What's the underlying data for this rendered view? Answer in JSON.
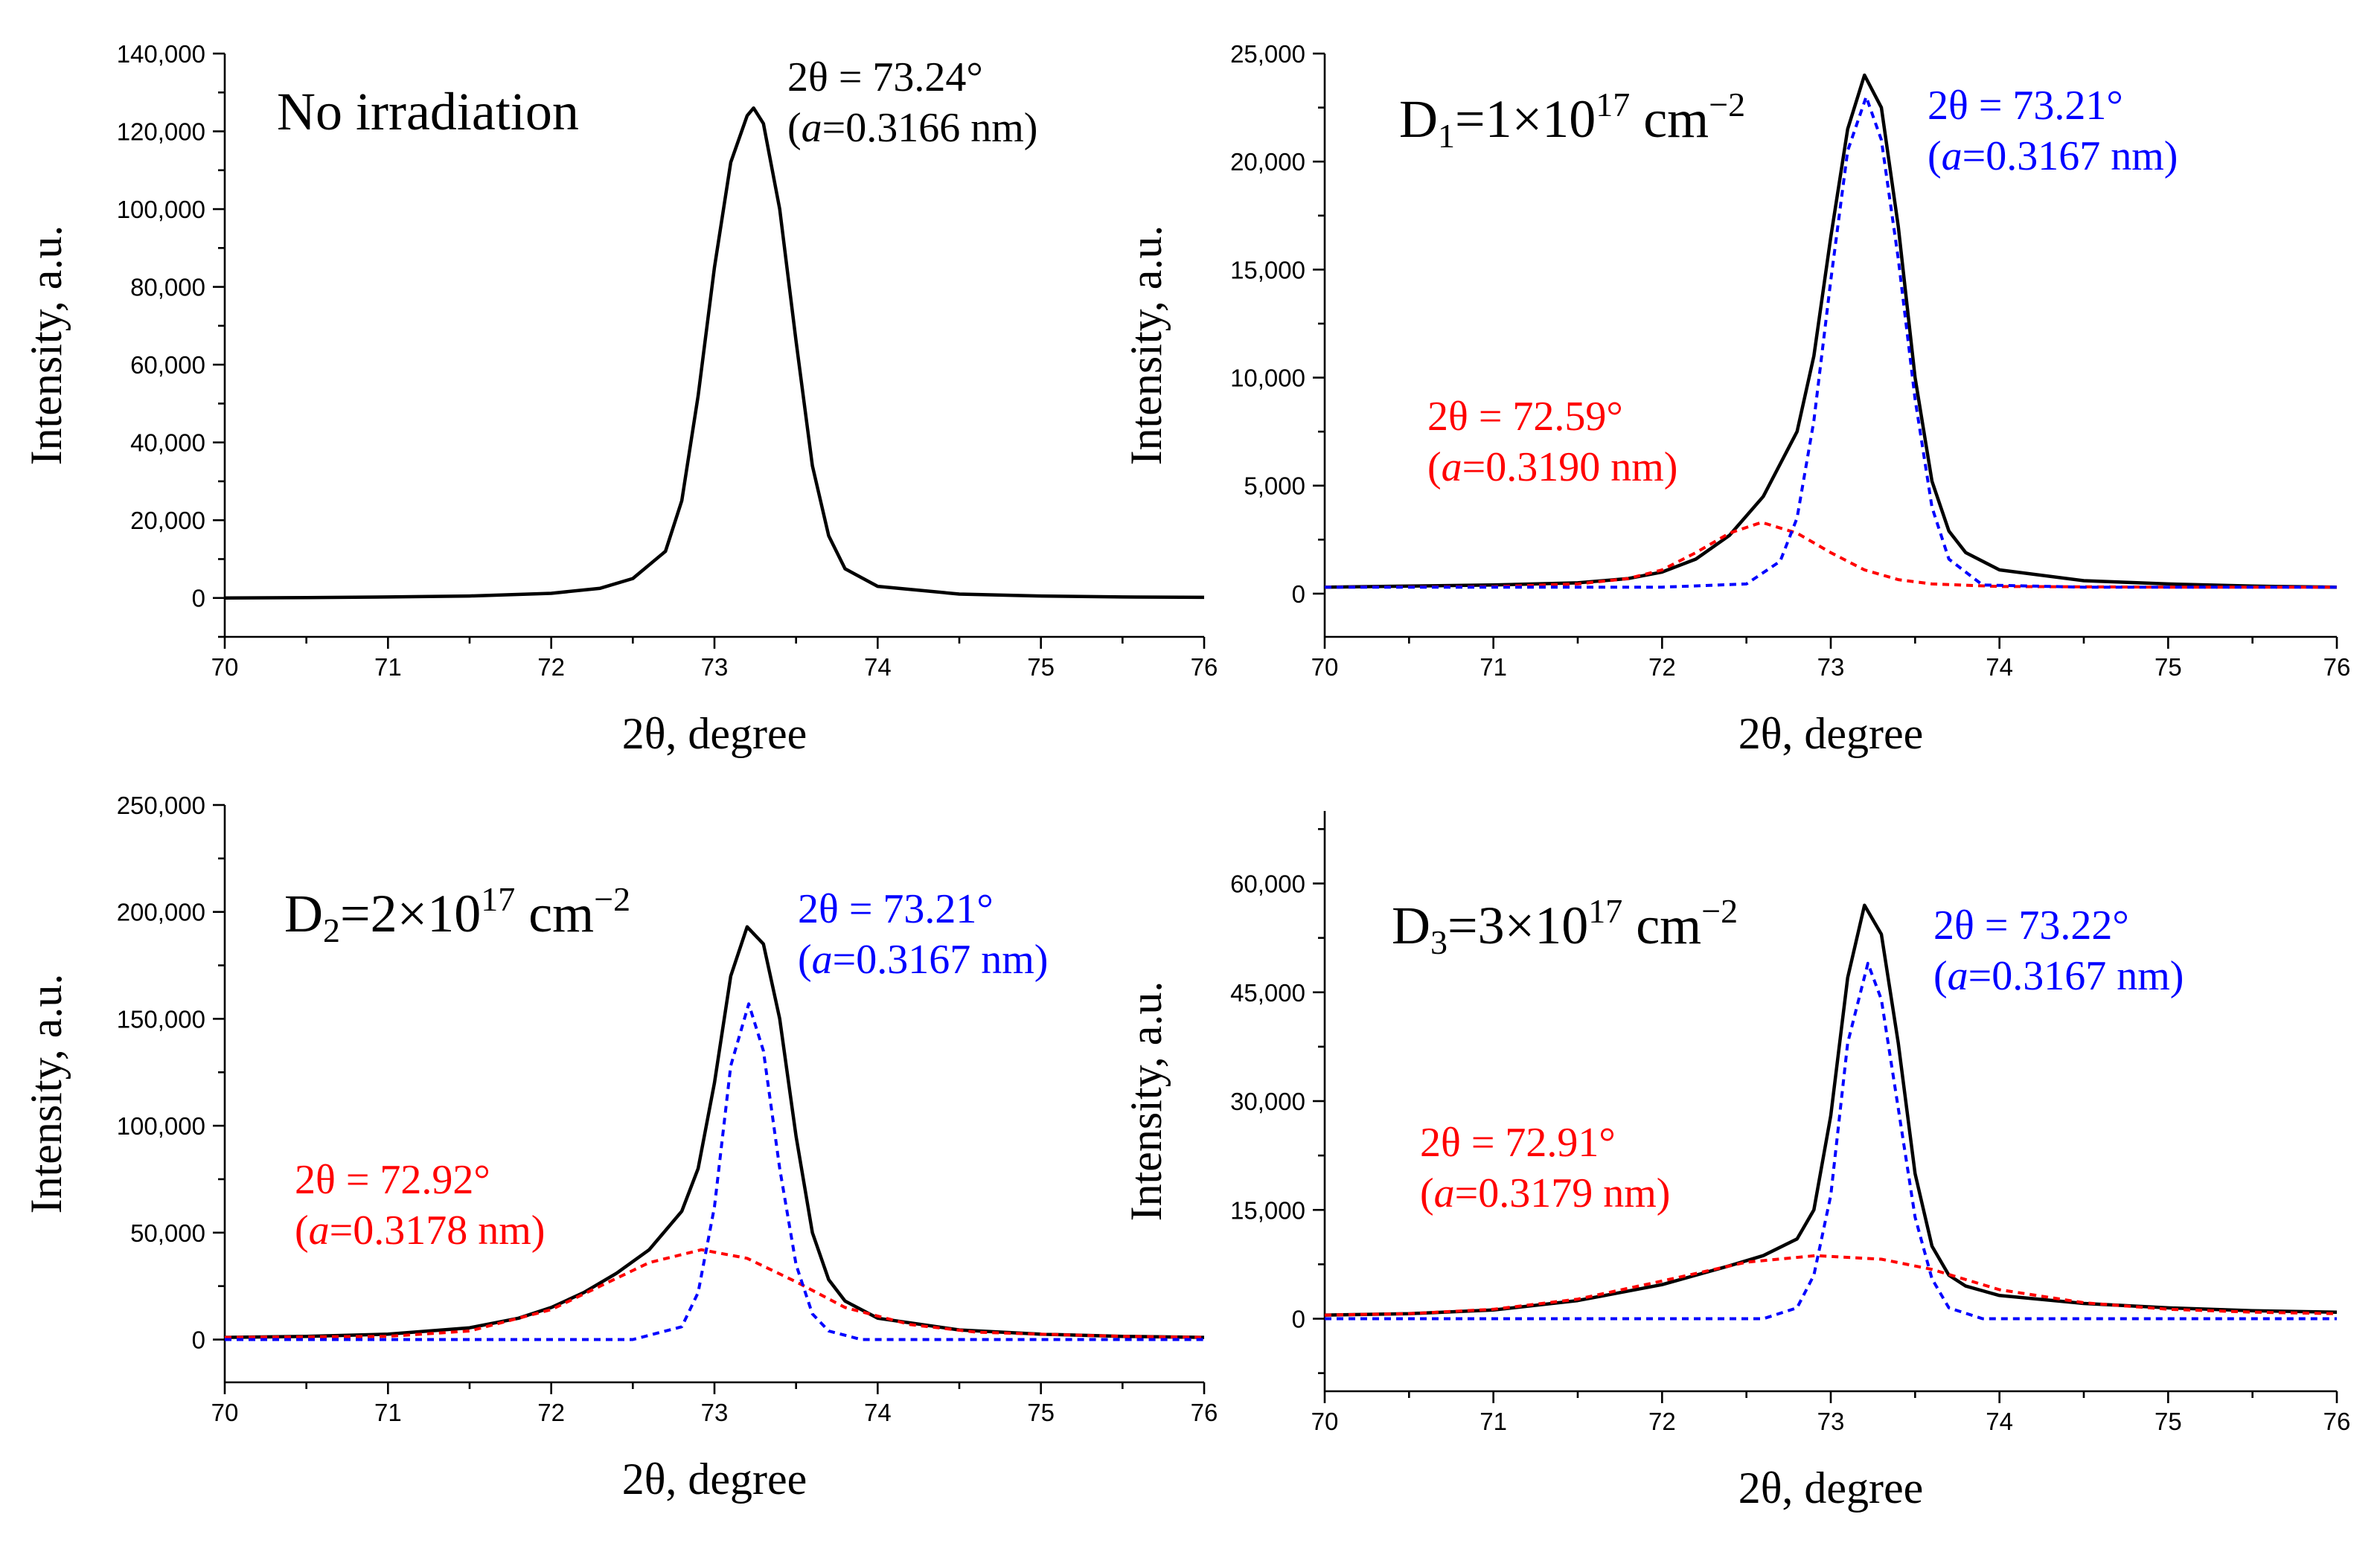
{
  "chart_data": [
    {
      "type": "line",
      "title": "No irradiation",
      "title_base": "No irradiation",
      "title_sub": "",
      "title_tail": "",
      "title_sup": "",
      "title_unit": "",
      "xlabel": "2θ, degree",
      "ylabel": "Intensity, a.u.",
      "xlim": [
        70,
        76
      ],
      "ylim": [
        -10000,
        140000
      ],
      "x_ticks": [
        70,
        71,
        72,
        73,
        74,
        75,
        76
      ],
      "x_tick_labels": [
        "70",
        "71",
        "72",
        "73",
        "74",
        "75",
        "76"
      ],
      "y_ticks": [
        0,
        20000,
        40000,
        60000,
        80000,
        100000,
        120000,
        140000
      ],
      "y_tick_labels": [
        "0",
        "20,000",
        "40,000",
        "60,000",
        "80,000",
        "100,000",
        "120,000",
        "140,000"
      ],
      "grid": false,
      "series": [
        {
          "style": "solid",
          "color": "#000000",
          "x": [
            70.0,
            70.5,
            71.0,
            71.5,
            72.0,
            72.3,
            72.5,
            72.7,
            72.8,
            72.9,
            73.0,
            73.1,
            73.2,
            73.24,
            73.3,
            73.4,
            73.5,
            73.6,
            73.7,
            73.8,
            74.0,
            74.5,
            75.0,
            75.5,
            76.0
          ],
          "y": [
            0,
            100,
            250,
            500,
            1200,
            2500,
            5000,
            12000,
            25000,
            52000,
            85000,
            112000,
            124000,
            126000,
            122000,
            100000,
            66000,
            34000,
            16000,
            7500,
            3000,
            1000,
            500,
            250,
            150
          ]
        }
      ],
      "annotations": [
        {
          "line1": "2θ = 73.24°",
          "a_label": "a",
          "line2_rest": "=0.3166 nm",
          "color": "#000000"
        }
      ]
    },
    {
      "type": "line",
      "title": "D1=1×1017 cm−2",
      "title_base": "D",
      "title_sub": "1",
      "title_tail": "=1×10",
      "title_sup": "17",
      "title_unit": " cm",
      "title_unit_sup": "−2",
      "xlabel": "2θ, degree",
      "ylabel": "Intensity, a.u.",
      "xlim": [
        70,
        76
      ],
      "ylim": [
        -2000,
        25000
      ],
      "x_ticks": [
        70,
        71,
        72,
        73,
        74,
        75,
        76
      ],
      "x_tick_labels": [
        "70",
        "71",
        "72",
        "73",
        "74",
        "75",
        "76"
      ],
      "y_ticks": [
        0,
        5000,
        10000,
        15000,
        20000,
        25000
      ],
      "y_tick_labels": [
        "0",
        "5,000",
        "10,000",
        "15,000",
        "20,000",
        "25,000"
      ],
      "grid": false,
      "series": [
        {
          "style": "solid",
          "color": "#000000",
          "x": [
            70.0,
            70.5,
            71.0,
            71.5,
            71.8,
            72.0,
            72.2,
            72.4,
            72.6,
            72.8,
            72.9,
            73.0,
            73.1,
            73.2,
            73.3,
            73.4,
            73.5,
            73.6,
            73.7,
            73.8,
            74.0,
            74.5,
            75.0,
            75.5,
            76.0
          ],
          "y": [
            300,
            350,
            400,
            500,
            700,
            1000,
            1600,
            2700,
            4500,
            7500,
            11000,
            16500,
            21500,
            24000,
            22500,
            17000,
            10000,
            5200,
            2900,
            1900,
            1100,
            600,
            450,
            350,
            300
          ]
        },
        {
          "style": "dashed",
          "color": "#ff0000",
          "x": [
            70.0,
            71.0,
            71.5,
            71.8,
            72.0,
            72.2,
            72.4,
            72.59,
            72.8,
            73.0,
            73.2,
            73.4,
            73.6,
            74.0,
            75.0,
            76.0
          ],
          "y": [
            300,
            320,
            450,
            700,
            1100,
            1900,
            2800,
            3300,
            2800,
            1900,
            1100,
            650,
            450,
            330,
            300,
            300
          ]
        },
        {
          "style": "dashed",
          "color": "#0000ff",
          "x": [
            70.0,
            72.0,
            72.5,
            72.7,
            72.8,
            72.9,
            73.0,
            73.1,
            73.21,
            73.3,
            73.4,
            73.5,
            73.6,
            73.7,
            73.9,
            74.5,
            76.0
          ],
          "y": [
            300,
            300,
            450,
            1500,
            3500,
            8000,
            14500,
            20500,
            23000,
            21000,
            15500,
            9000,
            4000,
            1600,
            400,
            300,
            300
          ]
        }
      ],
      "annotations": [
        {
          "line1": "2θ = 73.21°",
          "a_label": "a",
          "line2_rest": "=0.3167 nm",
          "color": "#0000ff"
        },
        {
          "line1": "2θ = 72.59°",
          "a_label": "a",
          "line2_rest": "=0.3190 nm",
          "color": "#ff0000"
        }
      ]
    },
    {
      "type": "line",
      "title": "D2=2×1017 cm−2",
      "title_base": "D",
      "title_sub": "2",
      "title_tail": "=2×10",
      "title_sup": "17",
      "title_unit": " cm",
      "title_unit_sup": "−2",
      "xlabel": "2θ, degree",
      "ylabel": "Intensity, a.u.",
      "xlim": [
        70,
        76
      ],
      "ylim": [
        -20000,
        250000
      ],
      "x_ticks": [
        70,
        71,
        72,
        73,
        74,
        75,
        76
      ],
      "x_tick_labels": [
        "70",
        "71",
        "72",
        "73",
        "74",
        "75",
        "76"
      ],
      "y_ticks": [
        0,
        50000,
        100000,
        150000,
        200000,
        250000
      ],
      "y_tick_labels": [
        "0",
        "50,000",
        "100,000",
        "150,000",
        "200,000",
        "250,000"
      ],
      "grid": false,
      "series": [
        {
          "style": "solid",
          "color": "#000000",
          "x": [
            70.0,
            70.5,
            71.0,
            71.5,
            71.8,
            72.0,
            72.2,
            72.4,
            72.6,
            72.8,
            72.9,
            73.0,
            73.1,
            73.2,
            73.3,
            73.4,
            73.5,
            73.6,
            73.7,
            73.8,
            74.0,
            74.5,
            75.0,
            75.5,
            76.0
          ],
          "y": [
            1000,
            1500,
            2500,
            5500,
            10000,
            15000,
            22000,
            31000,
            42000,
            60000,
            80000,
            120000,
            170000,
            193000,
            185000,
            150000,
            95000,
            50000,
            28000,
            18000,
            10000,
            4500,
            2500,
            1500,
            1000
          ]
        },
        {
          "style": "dashed",
          "color": "#ff0000",
          "x": [
            70.0,
            71.0,
            71.5,
            72.0,
            72.3,
            72.6,
            72.92,
            73.2,
            73.5,
            73.8,
            74.2,
            74.6,
            75.0,
            75.5,
            76.0
          ],
          "y": [
            1000,
            1500,
            4000,
            14000,
            25000,
            36000,
            42000,
            38000,
            27000,
            15000,
            7000,
            3500,
            2500,
            1500,
            1000
          ]
        },
        {
          "style": "dashed",
          "color": "#0000ff",
          "x": [
            70.0,
            72.5,
            72.8,
            72.9,
            73.0,
            73.1,
            73.21,
            73.3,
            73.4,
            73.5,
            73.6,
            73.7,
            73.9,
            76.0
          ],
          "y": [
            0,
            0,
            6000,
            22000,
            62000,
            128000,
            157000,
            135000,
            80000,
            35000,
            12000,
            4000,
            0,
            0
          ]
        }
      ],
      "annotations": [
        {
          "line1": "2θ = 73.21°",
          "a_label": "a",
          "line2_rest": "=0.3167 nm",
          "color": "#0000ff"
        },
        {
          "line1": "2θ = 72.92°",
          "a_label": "a",
          "line2_rest": "=0.3178 nm",
          "color": "#ff0000"
        }
      ]
    },
    {
      "type": "line",
      "title": "D3=3×1017 cm−2",
      "title_base": "D",
      "title_sub": "3",
      "title_tail": "=3×10",
      "title_sup": "17",
      "title_unit": " cm",
      "title_unit_sup": "−2",
      "xlabel": "2θ, degree",
      "ylabel": "Intensity, a.u.",
      "xlim": [
        70,
        76
      ],
      "ylim": [
        -10000,
        70000
      ],
      "x_ticks": [
        70,
        71,
        72,
        73,
        74,
        75,
        76
      ],
      "x_tick_labels": [
        "70",
        "71",
        "72",
        "73",
        "74",
        "75",
        "76"
      ],
      "y_ticks": [
        0,
        15000,
        30000,
        45000,
        60000
      ],
      "y_tick_labels": [
        "0",
        "15,000",
        "30,000",
        "45,000",
        "60,000"
      ],
      "grid": false,
      "series": [
        {
          "style": "solid",
          "color": "#000000",
          "x": [
            70.0,
            70.5,
            71.0,
            71.5,
            72.0,
            72.2,
            72.4,
            72.6,
            72.8,
            72.9,
            73.0,
            73.1,
            73.2,
            73.3,
            73.4,
            73.5,
            73.6,
            73.7,
            73.8,
            74.0,
            74.5,
            75.0,
            75.5,
            76.0
          ],
          "y": [
            500,
            700,
            1200,
            2500,
            4700,
            6000,
            7300,
            8700,
            11000,
            15000,
            28000,
            47000,
            57000,
            53000,
            38000,
            20000,
            10000,
            6000,
            4500,
            3200,
            2100,
            1500,
            1100,
            900
          ]
        },
        {
          "style": "dashed",
          "color": "#ff0000",
          "x": [
            70.0,
            70.5,
            71.0,
            71.5,
            72.0,
            72.5,
            72.91,
            73.3,
            73.6,
            74.0,
            74.5,
            75.0,
            75.5,
            76.0
          ],
          "y": [
            500,
            700,
            1300,
            2700,
            5200,
            7800,
            8700,
            8200,
            6800,
            4000,
            2200,
            1300,
            900,
            700
          ]
        },
        {
          "style": "dashed",
          "color": "#0000ff",
          "x": [
            70.0,
            72.6,
            72.8,
            72.9,
            73.0,
            73.1,
            73.22,
            73.3,
            73.4,
            73.5,
            73.6,
            73.7,
            73.9,
            76.0
          ],
          "y": [
            0,
            0,
            1500,
            6000,
            17000,
            38000,
            49000,
            44000,
            29000,
            14000,
            5500,
            1500,
            0,
            0
          ]
        }
      ],
      "annotations": [
        {
          "line1": "2θ = 73.22°",
          "a_label": "a",
          "line2_rest": "=0.3167 nm",
          "color": "#0000ff"
        },
        {
          "line1": "2θ = 72.91°",
          "a_label": "a",
          "line2_rest": "=0.3179 nm",
          "color": "#ff0000"
        }
      ]
    }
  ]
}
